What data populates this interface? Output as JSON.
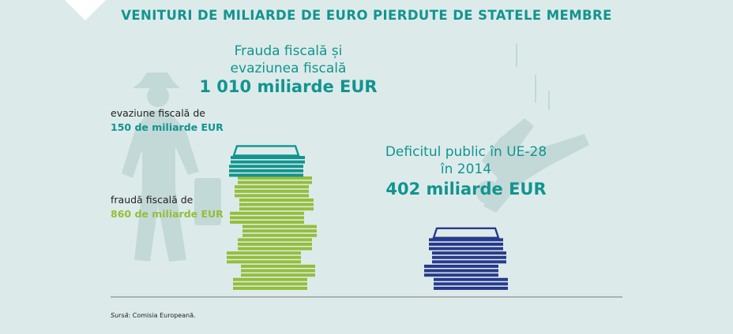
{
  "title": "VENITURI DE MILIARDE DE EURO PIERDUTE DE STATELE MEMBRE",
  "left": {
    "label_line1": "Frauda fiscală și",
    "label_line2": "evaziunea fiscală",
    "total": "1 010 miliarde EUR",
    "evasion_label": "evaziune fiscală de",
    "evasion_value": "150 de miliarde EUR",
    "fraud_label": "fraudă fiscală de",
    "fraud_value": "860 de miliarde EUR"
  },
  "right": {
    "label_line1": "Deficitul public în UE-28",
    "label_line2": "în 2014",
    "total": "402 miliarde EUR"
  },
  "source_label": "Sursă",
  "source_text": ": Comisia Europeană.",
  "colors": {
    "background": "#dcebea",
    "teal": "#12948f",
    "green": "#95be3a",
    "navy": "#283a8c",
    "silhouette": "#c3d9d7"
  },
  "chart_data": {
    "type": "bar",
    "categories": [
      "Frauda fiscală și evaziunea fiscală",
      "Deficitul public în UE-28 în 2014"
    ],
    "series": [
      {
        "name": "evaziune fiscală",
        "values": [
          150,
          0
        ]
      },
      {
        "name": "fraudă fiscală",
        "values": [
          860,
          0
        ]
      },
      {
        "name": "Deficitul public în UE-28",
        "values": [
          0,
          402
        ]
      }
    ],
    "totals": [
      1010,
      402
    ],
    "unit": "miliarde EUR"
  }
}
